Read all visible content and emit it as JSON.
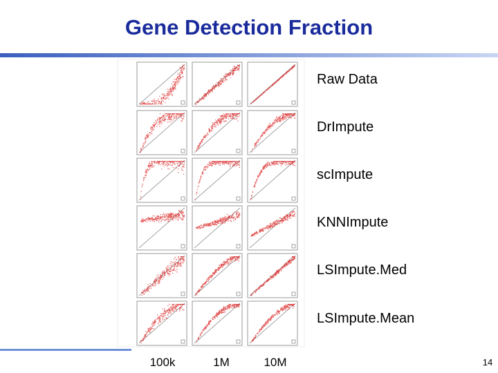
{
  "header": {
    "title": "Gene Detection Fraction"
  },
  "rows": [
    "Raw Data",
    "DrImpute",
    "scImpute",
    "KNNImpute",
    "LSImpute.Med",
    "LSImpute.Mean"
  ],
  "columns": [
    "100k",
    "1M",
    "10M"
  ],
  "footer": {
    "page_number": "14"
  }
}
